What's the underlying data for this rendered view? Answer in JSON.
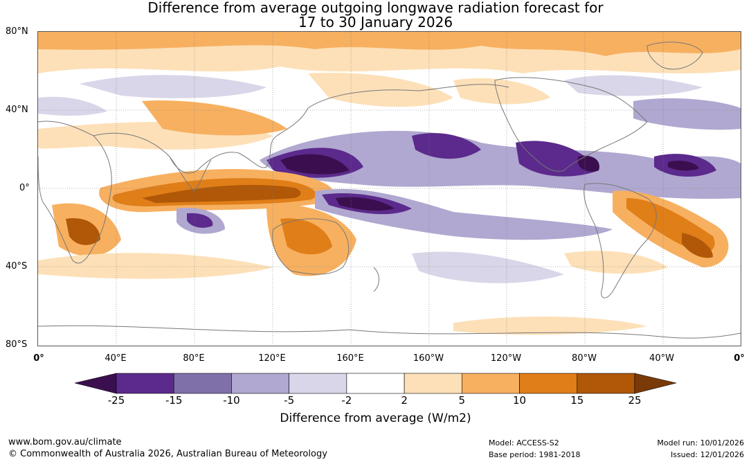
{
  "title": {
    "line1": "Difference from average outgoing longwave radiation forecast for",
    "line2": "17 to 30 January 2026"
  },
  "map": {
    "lat_labels": [
      "80°N",
      "40°N",
      "0°",
      "40°S",
      "80°S"
    ],
    "lon_labels": [
      "0°",
      "40°E",
      "80°E",
      "120°E",
      "160°E",
      "160°W",
      "120°W",
      "80°W",
      "40°W",
      "0°"
    ]
  },
  "legend": {
    "title": "Difference from average (W/m2)",
    "tick_labels": [
      "-25",
      "-15",
      "-10",
      "-5",
      "-2",
      "2",
      "5",
      "10",
      "15",
      "25"
    ],
    "colors": [
      "#3b0f4f",
      "#5b2a8c",
      "#8070aa",
      "#b0a8d0",
      "#d8d6e8",
      "#ffffff",
      "#fde0b8",
      "#f7b060",
      "#e07e18",
      "#b05808",
      "#7a3a08"
    ]
  },
  "footer": {
    "website": "www.bom.gov.au/climate",
    "copyright": "© Commonwealth of Australia 2026, Australian Bureau of Meteorology",
    "model": "Model: ACCESS-S2",
    "base_period": "Base period: 1981-2018",
    "model_run": "Model run: 10/01/2026",
    "issued": "Issued: 12/01/2026"
  }
}
